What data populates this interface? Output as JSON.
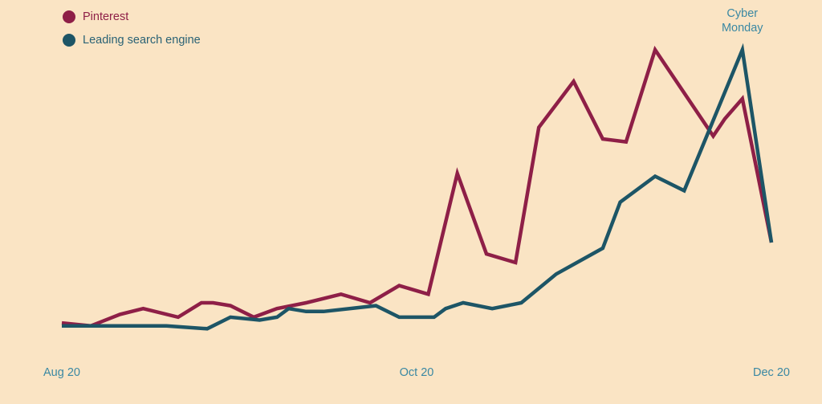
{
  "colors": {
    "background": "#fae4c4",
    "pinterest": "#8e1f47",
    "search": "#1d5566",
    "axis_text": "#3a88a3",
    "search_text": "#2a6275"
  },
  "chart_data": {
    "type": "line",
    "title": "",
    "xlabel": "",
    "ylabel": "",
    "y_note_unit": "relative interest (estimated, max = 100)",
    "xlim": [
      "2020-08-01",
      "2020-12-01"
    ],
    "ylim": [
      0,
      100
    ],
    "grid": false,
    "legend_position": "top-left",
    "x_ticks": [
      {
        "date": "2020-08-01",
        "label": "Aug 20"
      },
      {
        "date": "2020-10-01",
        "label": "Oct 20"
      },
      {
        "date": "2020-12-01",
        "label": "Dec 20"
      }
    ],
    "annotation": {
      "date": "2020-11-26",
      "lines": [
        "Cyber",
        "Monday"
      ]
    },
    "series": [
      {
        "name": "Pinterest",
        "color": "#8e1f47",
        "points": [
          [
            "2020-08-01",
            5
          ],
          [
            "2020-08-06",
            4
          ],
          [
            "2020-08-11",
            8
          ],
          [
            "2020-08-15",
            10
          ],
          [
            "2020-08-21",
            7
          ],
          [
            "2020-08-25",
            12
          ],
          [
            "2020-08-27",
            12
          ],
          [
            "2020-08-30",
            11
          ],
          [
            "2020-09-03",
            7
          ],
          [
            "2020-09-07",
            10
          ],
          [
            "2020-09-12",
            12
          ],
          [
            "2020-09-18",
            15
          ],
          [
            "2020-09-23",
            12
          ],
          [
            "2020-09-28",
            18
          ],
          [
            "2020-10-03",
            15
          ],
          [
            "2020-10-08",
            57
          ],
          [
            "2020-10-13",
            29
          ],
          [
            "2020-10-18",
            26
          ],
          [
            "2020-10-22",
            73
          ],
          [
            "2020-10-28",
            89
          ],
          [
            "2020-11-02",
            69
          ],
          [
            "2020-11-06",
            68
          ],
          [
            "2020-11-11",
            100
          ],
          [
            "2020-11-21",
            70
          ],
          [
            "2020-11-23",
            76
          ],
          [
            "2020-11-26",
            83
          ],
          [
            "2020-12-01",
            33
          ]
        ]
      },
      {
        "name": "Leading search engine",
        "color": "#1d5566",
        "points": [
          [
            "2020-08-01",
            4
          ],
          [
            "2020-08-06",
            4
          ],
          [
            "2020-08-19",
            4
          ],
          [
            "2020-08-26",
            3
          ],
          [
            "2020-08-30",
            7
          ],
          [
            "2020-09-04",
            6
          ],
          [
            "2020-09-07",
            7
          ],
          [
            "2020-09-09",
            10
          ],
          [
            "2020-09-12",
            9
          ],
          [
            "2020-09-15",
            9
          ],
          [
            "2020-09-24",
            11
          ],
          [
            "2020-09-28",
            7
          ],
          [
            "2020-10-04",
            7
          ],
          [
            "2020-10-06",
            10
          ],
          [
            "2020-10-09",
            12
          ],
          [
            "2020-10-14",
            10
          ],
          [
            "2020-10-19",
            12
          ],
          [
            "2020-10-25",
            22
          ],
          [
            "2020-11-02",
            31
          ],
          [
            "2020-11-05",
            47
          ],
          [
            "2020-11-11",
            56
          ],
          [
            "2020-11-16",
            51
          ],
          [
            "2020-11-26",
            100
          ],
          [
            "2020-12-01",
            33
          ]
        ]
      }
    ]
  }
}
